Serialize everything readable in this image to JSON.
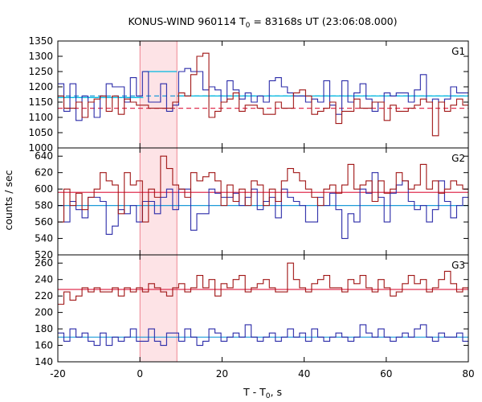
{
  "chart_data": {
    "type": "line",
    "title": {
      "prefix": "KONUS-WIND 960114 T",
      "sub": "0",
      "suffix": " = 83168s UT (23:06:08.000)"
    },
    "xlabel": {
      "prefix": "T - T",
      "sub": "0",
      "suffix": ", s"
    },
    "ylabel": "counts / sec",
    "xlim": [
      -20,
      80
    ],
    "x_ticks": [
      -20,
      0,
      20,
      40,
      60,
      80
    ],
    "highlight_interval": [
      0,
      9
    ],
    "colors": {
      "series_red": "#a01515",
      "series_blue": "#2a2aa8",
      "bg_red": "#e03050",
      "bg_blue": "#1e9bd8",
      "highlight": "#fde3e6",
      "highlight_edge": "#e96a7a",
      "fit_line": "#00b8e0"
    },
    "panels": [
      {
        "name": "G1",
        "ylim": [
          1000,
          1350
        ],
        "y_ticks": [
          1000,
          1050,
          1100,
          1150,
          1200,
          1250,
          1300,
          1350
        ],
        "bin_width": 1.472,
        "x_start": -20,
        "series": [
          {
            "color_key": "series_blue",
            "values": [
              1210,
              1120,
              1210,
              1090,
              1170,
              1150,
              1100,
              1170,
              1210,
              1200,
              1200,
              1150,
              1230,
              1170,
              1250,
              1150,
              1150,
              1210,
              1120,
              1140,
              1250,
              1260,
              1250,
              1250,
              1190,
              1200,
              1190,
              1150,
              1220,
              1190,
              1160,
              1180,
              1150,
              1170,
              1150,
              1220,
              1230,
              1200,
              1180,
              1170,
              1170,
              1150,
              1160,
              1150,
              1220,
              1140,
              1110,
              1220,
              1150,
              1180,
              1210,
              1160,
              1120,
              1150,
              1180,
              1170,
              1180,
              1180,
              1150,
              1190,
              1240,
              1150,
              1160,
              1150,
              1160,
              1200,
              1180,
              1180,
              1200,
              1170
            ]
          },
          {
            "color_key": "series_red",
            "values": [
              1170,
              1130,
              1130,
              1150,
              1100,
              1150,
              1160,
              1170,
              1120,
              1170,
              1110,
              1160,
              1150,
              1140,
              1140,
              1130,
              1130,
              1130,
              1130,
              1150,
              1180,
              1170,
              1240,
              1300,
              1310,
              1100,
              1120,
              1150,
              1160,
              1180,
              1120,
              1140,
              1140,
              1130,
              1110,
              1110,
              1150,
              1130,
              1130,
              1180,
              1190,
              1170,
              1110,
              1120,
              1130,
              1150,
              1080,
              1120,
              1120,
              1160,
              1130,
              1130,
              1150,
              1150,
              1090,
              1140,
              1120,
              1120,
              1130,
              1140,
              1160,
              1150,
              1040,
              1150,
              1120,
              1140,
              1160,
              1140,
              1130,
              1100
            ]
          }
        ],
        "backgrounds": [
          {
            "color_key": "bg_blue",
            "value": 1170,
            "style": "dashed"
          },
          {
            "color_key": "bg_red",
            "value": 1130,
            "style": "dashed"
          }
        ],
        "fit_lines": [
          {
            "value": 1165,
            "x_range": [
              -20,
              0.8
            ]
          },
          {
            "value": 1250,
            "x_range": [
              0.8,
              9
            ]
          },
          {
            "value": 1170,
            "x_range": [
              9,
              80
            ]
          }
        ]
      },
      {
        "name": "G2",
        "ylim": [
          520,
          650
        ],
        "y_ticks": [
          520,
          540,
          560,
          580,
          600,
          620,
          640
        ],
        "bin_width": 1.472,
        "x_start": -20,
        "series": [
          {
            "color_key": "series_blue",
            "values": [
              580,
              560,
              585,
              575,
              565,
              590,
              590,
              585,
              545,
              555,
              575,
              570,
              580,
              560,
              585,
              585,
              570,
              590,
              600,
              575,
              600,
              600,
              550,
              570,
              570,
              600,
              595,
              590,
              590,
              595,
              580,
              590,
              600,
              575,
              585,
              590,
              565,
              600,
              590,
              585,
              580,
              560,
              560,
              590,
              580,
              595,
              575,
              540,
              570,
              560,
              600,
              595,
              620,
              590,
              560,
              595,
              605,
              610,
              585,
              575,
              580,
              560,
              575,
              610,
              585,
              565,
              580,
              590,
              560,
              580
            ]
          },
          {
            "color_key": "series_red",
            "values": [
              560,
              600,
              580,
              595,
              575,
              590,
              600,
              620,
              610,
              605,
              570,
              620,
              605,
              610,
              560,
              600,
              590,
              640,
              625,
              605,
              600,
              590,
              620,
              610,
              615,
              620,
              610,
              580,
              605,
              585,
              600,
              580,
              610,
              605,
              580,
              600,
              585,
              610,
              625,
              620,
              610,
              600,
              590,
              580,
              600,
              605,
              595,
              605,
              630,
              600,
              605,
              610,
              585,
              610,
              595,
              600,
              620,
              610,
              600,
              605,
              630,
              600,
              610,
              595,
              600,
              610,
              605,
              600,
              620,
              600
            ]
          }
        ],
        "backgrounds": [
          {
            "color_key": "bg_blue",
            "value": 580,
            "style": "solid"
          },
          {
            "color_key": "bg_red",
            "value": 596,
            "style": "solid"
          }
        ],
        "fit_lines": []
      },
      {
        "name": "G3",
        "ylim": [
          140,
          270
        ],
        "y_ticks": [
          140,
          160,
          180,
          200,
          220,
          240,
          260
        ],
        "bin_width": 1.472,
        "x_start": -20,
        "series": [
          {
            "color_key": "series_blue",
            "values": [
              175,
              165,
              180,
              170,
              175,
              165,
              160,
              175,
              160,
              170,
              165,
              170,
              180,
              165,
              165,
              180,
              165,
              160,
              175,
              175,
              165,
              180,
              170,
              160,
              165,
              180,
              175,
              165,
              170,
              175,
              170,
              185,
              170,
              165,
              170,
              175,
              165,
              170,
              180,
              170,
              175,
              165,
              180,
              170,
              165,
              170,
              175,
              170,
              165,
              170,
              185,
              175,
              170,
              180,
              170,
              165,
              170,
              175,
              170,
              180,
              185,
              170,
              165,
              175,
              170,
              170,
              175,
              165,
              185,
              170
            ]
          },
          {
            "color_key": "series_red",
            "values": [
              210,
              225,
              215,
              220,
              230,
              225,
              230,
              225,
              225,
              230,
              220,
              230,
              225,
              230,
              225,
              235,
              230,
              225,
              220,
              230,
              235,
              225,
              230,
              245,
              230,
              240,
              220,
              235,
              230,
              240,
              245,
              225,
              230,
              235,
              240,
              230,
              225,
              225,
              260,
              240,
              230,
              225,
              235,
              240,
              245,
              230,
              230,
              225,
              240,
              235,
              245,
              230,
              225,
              240,
              230,
              220,
              225,
              235,
              245,
              235,
              240,
              225,
              230,
              240,
              250,
              235,
              225,
              230,
              235,
              225
            ]
          }
        ],
        "backgrounds": [
          {
            "color_key": "bg_blue",
            "value": 170,
            "style": "solid"
          },
          {
            "color_key": "bg_red",
            "value": 228,
            "style": "solid"
          }
        ],
        "fit_lines": []
      }
    ]
  }
}
